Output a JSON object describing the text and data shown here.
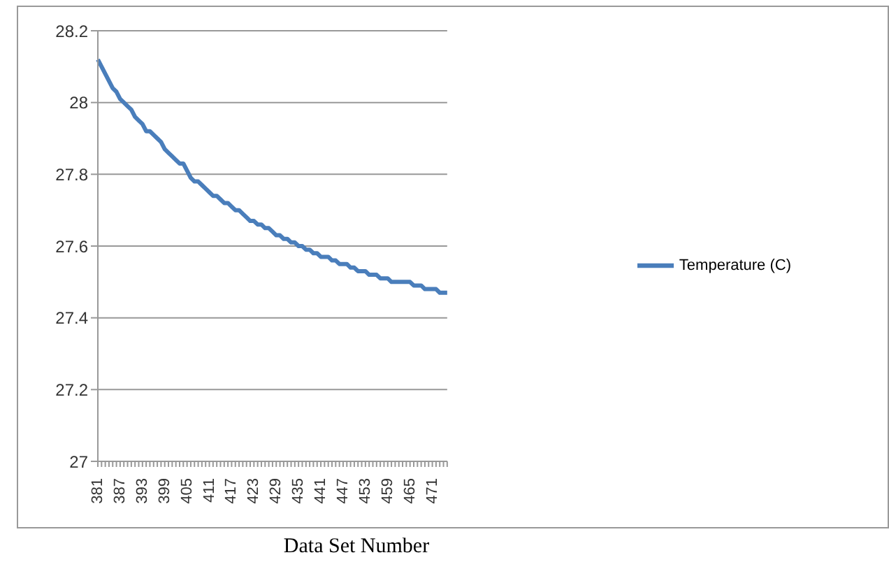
{
  "chart_data": {
    "type": "line",
    "xlabel": "Data Set Number",
    "categories": [
      "381",
      null,
      null,
      null,
      null,
      null,
      "387",
      null,
      null,
      null,
      null,
      null,
      "393",
      null,
      null,
      null,
      null,
      null,
      "399",
      null,
      null,
      null,
      null,
      null,
      "405",
      null,
      null,
      null,
      null,
      null,
      "411",
      null,
      null,
      null,
      null,
      null,
      "417",
      null,
      null,
      null,
      null,
      null,
      "423",
      null,
      null,
      null,
      null,
      null,
      "429",
      null,
      null,
      null,
      null,
      null,
      "435",
      null,
      null,
      null,
      null,
      null,
      "441",
      null,
      null,
      null,
      null,
      null,
      "447",
      null,
      null,
      null,
      null,
      null,
      "453",
      null,
      null,
      null,
      null,
      null,
      "459",
      null,
      null,
      null,
      null,
      null,
      "465",
      null,
      null,
      null,
      null,
      null,
      "471",
      null,
      null,
      null,
      null
    ],
    "series": [
      {
        "name": "Temperature (C)",
        "color": "#4a7ebb",
        "values": [
          28.12,
          28.1,
          28.08,
          28.06,
          28.04,
          28.03,
          28.01,
          28.0,
          27.99,
          27.98,
          27.96,
          27.95,
          27.94,
          27.92,
          27.92,
          27.91,
          27.9,
          27.89,
          27.87,
          27.86,
          27.85,
          27.84,
          27.83,
          27.83,
          27.81,
          27.79,
          27.78,
          27.78,
          27.77,
          27.76,
          27.75,
          27.74,
          27.74,
          27.73,
          27.72,
          27.72,
          27.71,
          27.7,
          27.7,
          27.69,
          27.68,
          27.67,
          27.67,
          27.66,
          27.66,
          27.65,
          27.65,
          27.64,
          27.63,
          27.63,
          27.62,
          27.62,
          27.61,
          27.61,
          27.6,
          27.6,
          27.59,
          27.59,
          27.58,
          27.58,
          27.57,
          27.57,
          27.57,
          27.56,
          27.56,
          27.55,
          27.55,
          27.55,
          27.54,
          27.54,
          27.53,
          27.53,
          27.53,
          27.52,
          27.52,
          27.52,
          27.51,
          27.51,
          27.51,
          27.5,
          27.5,
          27.5,
          27.5,
          27.5,
          27.5,
          27.49,
          27.49,
          27.49,
          27.48,
          27.48,
          27.48,
          27.48,
          27.47,
          27.47,
          27.47
        ]
      }
    ],
    "ylim": [
      27,
      28.2
    ],
    "yticks": [
      27,
      27.2,
      27.4,
      27.6,
      27.8,
      28,
      28.2
    ],
    "grid": "y",
    "legend": "right",
    "marker": "none",
    "line_style": "solid"
  }
}
